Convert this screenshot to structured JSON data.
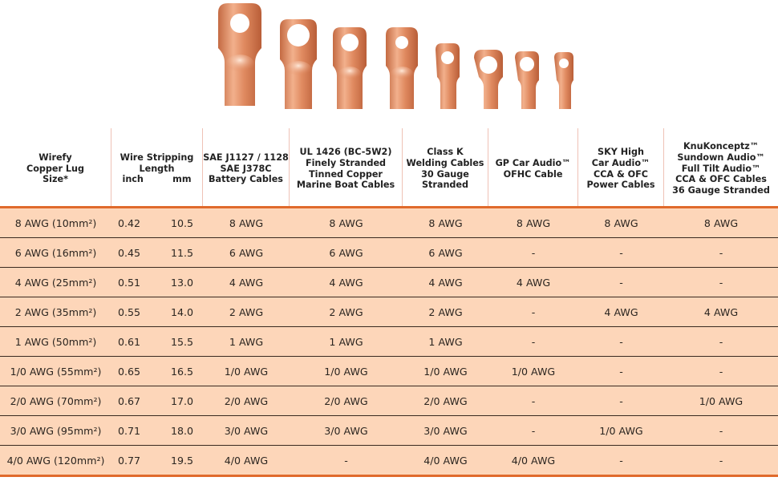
{
  "hero": {
    "image_label": "Copper lugs product photo",
    "lug_count": 8
  },
  "colors": {
    "table_background": "#fdd6b9",
    "accent_rule": "#e06a2c",
    "header_divider": "#efc2b6",
    "row_divider": "#3a2a20",
    "copper": "#d9875f"
  },
  "table": {
    "headers": [
      {
        "lines": [
          "Wirefy",
          "Copper Lug",
          "Size*"
        ]
      },
      {
        "lines": [
          "Wire Stripping",
          "Length"
        ],
        "sub": [
          "inch",
          "mm"
        ]
      },
      {
        "lines": [
          "SAE J1127 / 1128",
          "SAE J378C",
          "Battery Cables"
        ]
      },
      {
        "lines": [
          "UL 1426 (BC-5W2)",
          "Finely Stranded",
          "Tinned Copper",
          "Marine Boat Cables"
        ]
      },
      {
        "lines": [
          "Class K",
          "Welding Cables",
          "30 Gauge",
          "Stranded"
        ]
      },
      {
        "lines": [
          "GP Car Audio™",
          "OFHC Cable"
        ]
      },
      {
        "lines": [
          "SKY High",
          "Car Audio™",
          "CCA & OFC",
          "Power Cables"
        ]
      },
      {
        "lines": [
          "KnuKonceptz™",
          "Sundown Audio™",
          "Full Tilt Audio™",
          "CCA & OFC Cables",
          "36 Gauge Stranded"
        ]
      }
    ],
    "rows": [
      {
        "size": "8 AWG (10mm²)",
        "inch": "0.42",
        "mm": "10.5",
        "sae": "8 AWG",
        "ul": "8 AWG",
        "classk": "8 AWG",
        "gp": "8 AWG",
        "sky": "8 AWG",
        "knu": "8 AWG"
      },
      {
        "size": "6 AWG (16mm²)",
        "inch": "0.45",
        "mm": "11.5",
        "sae": "6 AWG",
        "ul": "6 AWG",
        "classk": "6 AWG",
        "gp": "-",
        "sky": "-",
        "knu": "-"
      },
      {
        "size": "4 AWG (25mm²)",
        "inch": "0.51",
        "mm": "13.0",
        "sae": "4 AWG",
        "ul": "4 AWG",
        "classk": "4 AWG",
        "gp": "4 AWG",
        "sky": "-",
        "knu": "-"
      },
      {
        "size": "2 AWG (35mm²)",
        "inch": "0.55",
        "mm": "14.0",
        "sae": "2 AWG",
        "ul": "2 AWG",
        "classk": "2 AWG",
        "gp": "-",
        "sky": "4 AWG",
        "knu": "4 AWG"
      },
      {
        "size": "1 AWG (50mm²)",
        "inch": "0.61",
        "mm": "15.5",
        "sae": "1 AWG",
        "ul": "1 AWG",
        "classk": "1 AWG",
        "gp": "-",
        "sky": "-",
        "knu": "-"
      },
      {
        "size": "1/0 AWG (55mm²)",
        "inch": "0.65",
        "mm": "16.5",
        "sae": "1/0 AWG",
        "ul": "1/0 AWG",
        "classk": "1/0 AWG",
        "gp": "1/0 AWG",
        "sky": "-",
        "knu": "-"
      },
      {
        "size": "2/0 AWG (70mm²)",
        "inch": "0.67",
        "mm": "17.0",
        "sae": "2/0 AWG",
        "ul": "2/0 AWG",
        "classk": "2/0 AWG",
        "gp": "-",
        "sky": "-",
        "knu": "1/0 AWG"
      },
      {
        "size": "3/0 AWG (95mm²)",
        "inch": "0.71",
        "mm": "18.0",
        "sae": "3/0 AWG",
        "ul": "3/0 AWG",
        "classk": "3/0 AWG",
        "gp": "-",
        "sky": "1/0 AWG",
        "knu": "-"
      },
      {
        "size": "4/0 AWG (120mm²)",
        "inch": "0.77",
        "mm": "19.5",
        "sae": "4/0 AWG",
        "ul": "-",
        "classk": "4/0 AWG",
        "gp": "4/0 AWG",
        "sky": "-",
        "knu": "-"
      }
    ]
  }
}
